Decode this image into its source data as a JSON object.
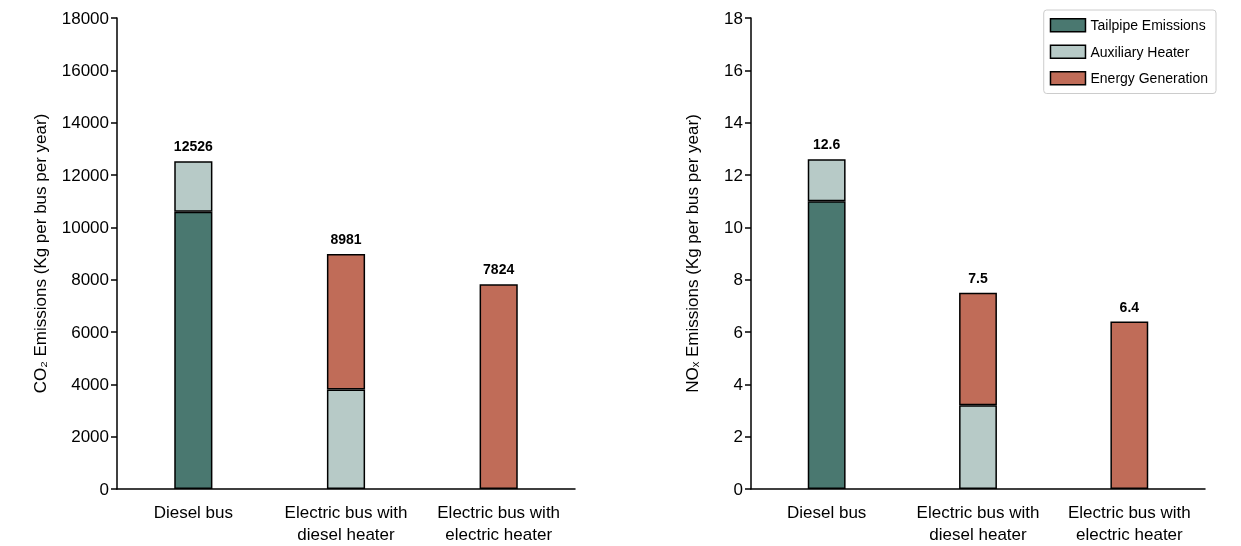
{
  "chart_data": [
    {
      "type": "bar",
      "stacked": true,
      "ylabel": "CO₂ Emissions (Kg per bus per year)",
      "categories": [
        "Diesel bus",
        "Electric bus with\ndiesel heater",
        "Electric bus with\nelectric heater"
      ],
      "series": [
        {
          "color": "#4a7870",
          "values": [
            10600,
            null,
            null
          ]
        },
        {
          "color": "#b7cac7",
          "values": [
            1926,
            3800,
            null
          ]
        },
        {
          "color": "#c06c58",
          "values": [
            null,
            5181,
            7824
          ]
        }
      ],
      "ylim": [
        0,
        18000
      ],
      "yticks": [
        0,
        2000,
        4000,
        6000,
        8000,
        10000,
        12000,
        14000,
        16000,
        18000
      ],
      "totals": [
        "12526",
        "8981",
        "7824"
      ],
      "grid": false,
      "legend": false
    },
    {
      "type": "bar",
      "stacked": true,
      "ylabel": "NOₓ Emissions (Kg per bus per year)",
      "categories": [
        "Diesel bus",
        "Electric bus with\ndiesel heater",
        "Electric bus with\nelectric heater"
      ],
      "series": [
        {
          "name": "Tailpipe Emissions",
          "color": "#4a7870",
          "values": [
            11.0,
            null,
            null
          ]
        },
        {
          "name": "Auxiliary Heater",
          "color": "#b7cac7",
          "values": [
            1.6,
            3.2,
            null
          ]
        },
        {
          "name": "Energy Generation",
          "color": "#c06c58",
          "values": [
            null,
            4.3,
            6.4
          ]
        }
      ],
      "ylim": [
        0,
        18
      ],
      "yticks": [
        0,
        2,
        4,
        6,
        8,
        10,
        12,
        14,
        16,
        18
      ],
      "totals": [
        "12.6",
        "7.5",
        "6.4"
      ],
      "grid": false,
      "legend": "top right"
    }
  ]
}
